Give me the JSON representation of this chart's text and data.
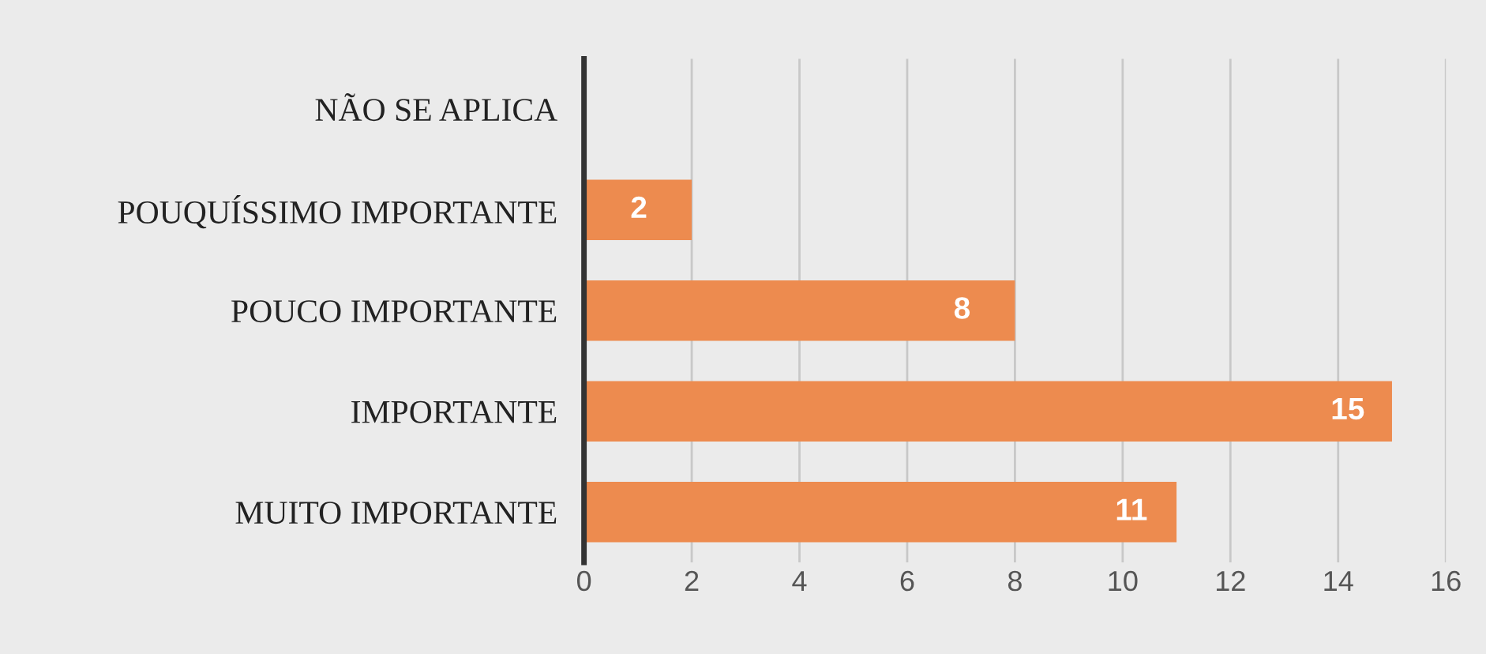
{
  "chart_data": {
    "type": "bar",
    "orientation": "horizontal",
    "categories": [
      "NÃO SE APLICA",
      "POUQUÍSSIMO IMPORTANTE",
      "POUCO IMPORTANTE",
      "IMPORTANTE",
      "MUITO IMPORTANTE"
    ],
    "values": [
      0,
      2,
      8,
      15,
      11
    ],
    "value_labels": [
      null,
      "2",
      "8",
      "15",
      "11"
    ],
    "color": "#ed8b4f",
    "xlim": [
      0,
      16
    ],
    "xticks": [
      0,
      2,
      4,
      6,
      8,
      10,
      12,
      14,
      16
    ],
    "grid": "x",
    "legend": false
  }
}
